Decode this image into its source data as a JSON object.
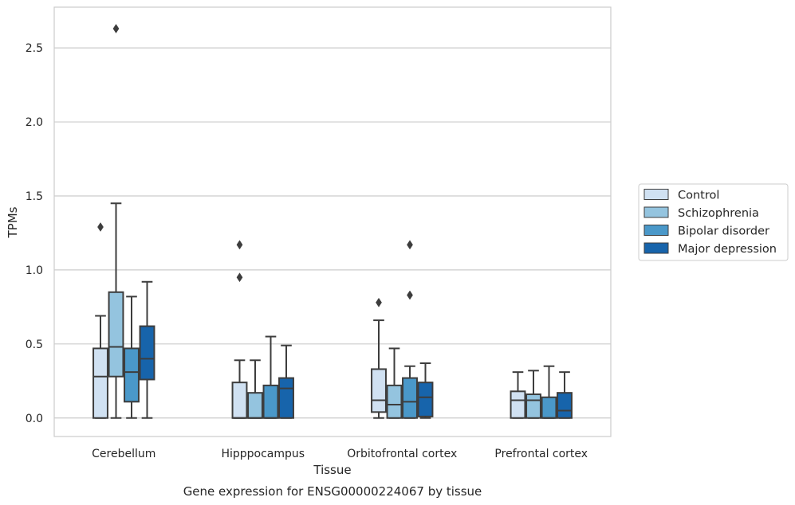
{
  "chart_data": {
    "type": "box",
    "xlabel": "Tissue",
    "ylabel": "TPMs",
    "caption": "Gene expression for ENSG00000224067 by tissue",
    "ylim": [
      -0.125,
      2.775
    ],
    "yticks": [
      "0.0",
      "0.5",
      "1.0",
      "1.5",
      "2.0",
      "2.5"
    ],
    "grid": "horizontal",
    "legend_position": "right",
    "categories": [
      "Cerebellum",
      "Hipppocampus",
      "Orbitofrontal cortex",
      "Prefrontal cortex"
    ],
    "series": [
      {
        "name": "Control",
        "color": "#d0e1f2",
        "boxes": [
          {
            "min": 0.0,
            "q1": 0.0,
            "median": 0.28,
            "q3": 0.47,
            "max": 0.69,
            "outliers": [
              1.29
            ]
          },
          {
            "min": 0.0,
            "q1": 0.0,
            "median": 0.0,
            "q3": 0.24,
            "max": 0.39,
            "outliers": [
              0.95,
              1.17
            ]
          },
          {
            "min": 0.0,
            "q1": 0.04,
            "median": 0.12,
            "q3": 0.33,
            "max": 0.66,
            "outliers": [
              0.78
            ]
          },
          {
            "min": 0.0,
            "q1": 0.0,
            "median": 0.12,
            "q3": 0.18,
            "max": 0.31,
            "outliers": []
          }
        ]
      },
      {
        "name": "Schizophrenia",
        "color": "#94c4df",
        "boxes": [
          {
            "min": 0.0,
            "q1": 0.28,
            "median": 0.48,
            "q3": 0.85,
            "max": 1.45,
            "outliers": [
              2.63
            ]
          },
          {
            "min": 0.0,
            "q1": 0.0,
            "median": 0.0,
            "q3": 0.17,
            "max": 0.39,
            "outliers": []
          },
          {
            "min": 0.0,
            "q1": 0.0,
            "median": 0.09,
            "q3": 0.22,
            "max": 0.47,
            "outliers": []
          },
          {
            "min": 0.0,
            "q1": 0.0,
            "median": 0.12,
            "q3": 0.16,
            "max": 0.32,
            "outliers": []
          }
        ]
      },
      {
        "name": "Bipolar disorder",
        "color": "#4a98c9",
        "boxes": [
          {
            "min": 0.0,
            "q1": 0.11,
            "median": 0.31,
            "q3": 0.47,
            "max": 0.82,
            "outliers": []
          },
          {
            "min": 0.0,
            "q1": 0.0,
            "median": 0.0,
            "q3": 0.22,
            "max": 0.55,
            "outliers": []
          },
          {
            "min": 0.0,
            "q1": 0.0,
            "median": 0.11,
            "q3": 0.27,
            "max": 0.35,
            "outliers": [
              0.83,
              1.17
            ]
          },
          {
            "min": 0.0,
            "q1": 0.0,
            "median": 0.0,
            "q3": 0.14,
            "max": 0.35,
            "outliers": []
          }
        ]
      },
      {
        "name": "Major depression",
        "color": "#1764ab",
        "boxes": [
          {
            "min": 0.0,
            "q1": 0.26,
            "median": 0.4,
            "q3": 0.62,
            "max": 0.92,
            "outliers": []
          },
          {
            "min": 0.0,
            "q1": 0.0,
            "median": 0.2,
            "q3": 0.27,
            "max": 0.49,
            "outliers": []
          },
          {
            "min": 0.0,
            "q1": 0.01,
            "median": 0.14,
            "q3": 0.24,
            "max": 0.37,
            "outliers": []
          },
          {
            "min": 0.0,
            "q1": 0.0,
            "median": 0.05,
            "q3": 0.17,
            "max": 0.31,
            "outliers": []
          }
        ]
      }
    ]
  }
}
